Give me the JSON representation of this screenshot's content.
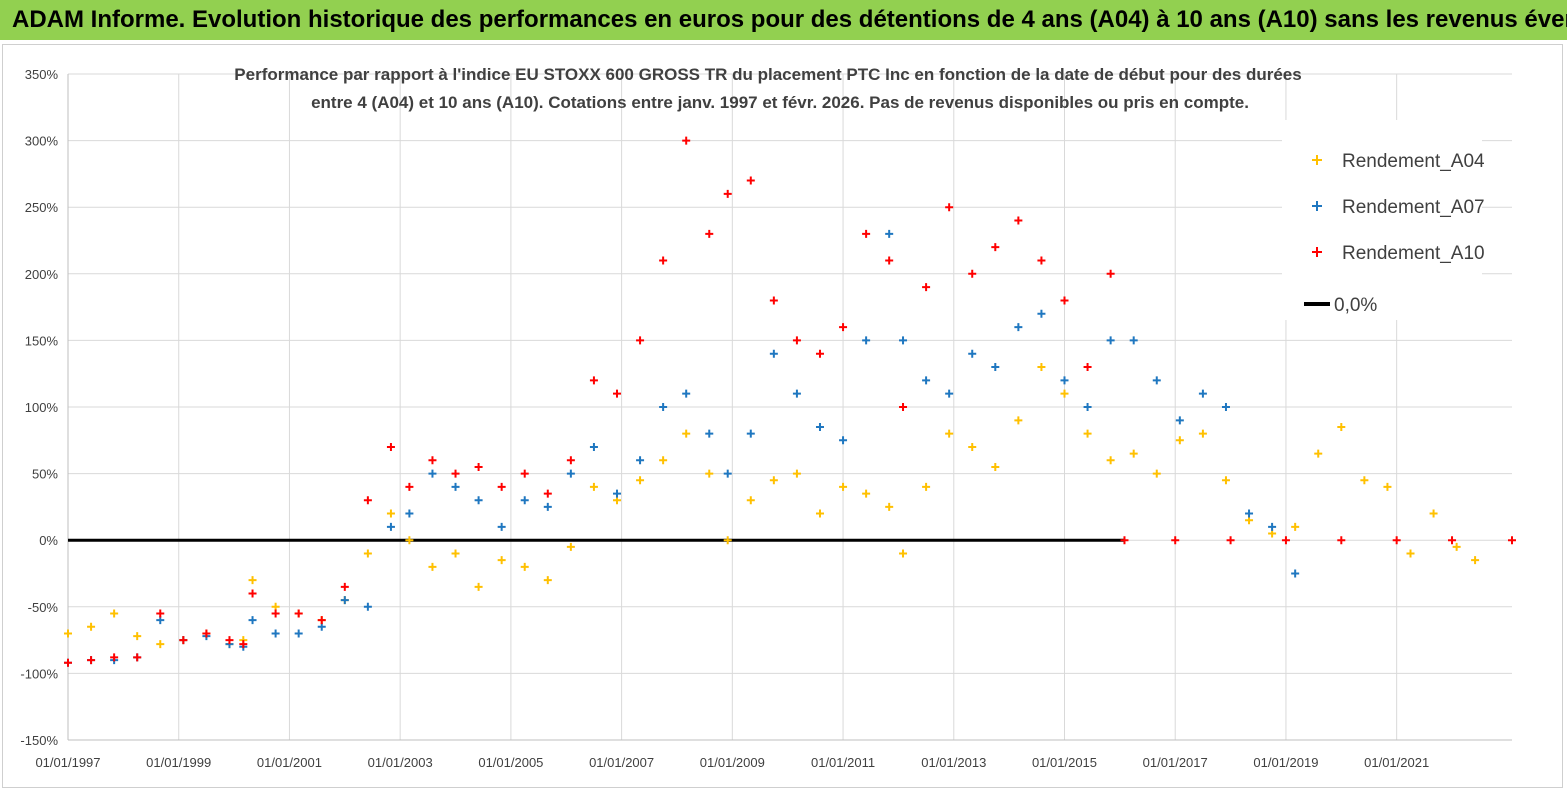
{
  "banner": {
    "title": "ADAM Informe. Evolution historique des performances en euros pour des détentions de 4 ans (A04) à 10 ans (A10) sans les revenus éventuels",
    "background": "#92d050"
  },
  "chart_data": {
    "type": "scatter",
    "subtitle_line1": "Performance par rapport à l'indice EU STOXX 600 GROSS TR  du placement PTC Inc en fonction de la date de début pour des durées",
    "subtitle_line2": "entre 4 (A04) et 10 ans (A10). Cotations entre janv. 1997 et févr. 2026. Pas de revenus disponibles ou pris en compte.",
    "xlabel": "",
    "ylabel": "",
    "x_range": [
      "1997-01-01",
      "2023-02-01"
    ],
    "ylim": [
      -150,
      350
    ],
    "y_ticks": [
      350,
      300,
      250,
      200,
      150,
      100,
      50,
      0,
      -50,
      -100,
      -150
    ],
    "y_tick_labels": [
      "350%",
      "300%",
      "250%",
      "200%",
      "150%",
      "100%",
      "50%",
      "0%",
      "-50%",
      "-100%",
      "-150%"
    ],
    "x_tick_labels": [
      "01/01/1997",
      "01/01/1999",
      "01/01/2001",
      "01/01/2003",
      "01/01/2005",
      "01/01/2007",
      "01/01/2009",
      "01/01/2011",
      "01/01/2013",
      "01/01/2015",
      "01/01/2017",
      "01/01/2019",
      "01/01/2021"
    ],
    "x_tick_years": [
      1997,
      1999,
      2001,
      2003,
      2005,
      2007,
      2009,
      2011,
      2013,
      2015,
      2017,
      2019,
      2021
    ],
    "grid": true,
    "legend_position": "top-right",
    "series": [
      {
        "name": "Rendement_A04",
        "color": "#ffc000",
        "marker": "+",
        "points": [
          [
            "1997-01-01",
            -70
          ],
          [
            "1997-06-01",
            -65
          ],
          [
            "1997-11-01",
            -55
          ],
          [
            "1998-04-01",
            -72
          ],
          [
            "1998-09-01",
            -78
          ],
          [
            "1999-02-01",
            -75
          ],
          [
            "1999-07-01",
            -70
          ],
          [
            "1999-12-01",
            -78
          ],
          [
            "2000-03-01",
            -75
          ],
          [
            "2000-05-01",
            -30
          ],
          [
            "2000-10-01",
            -50
          ],
          [
            "2001-03-01",
            -55
          ],
          [
            "2001-08-01",
            -60
          ],
          [
            "2002-01-01",
            -45
          ],
          [
            "2002-06-01",
            -10
          ],
          [
            "2002-11-01",
            20
          ],
          [
            "2003-03-01",
            0
          ],
          [
            "2003-08-01",
            -20
          ],
          [
            "2004-01-01",
            -10
          ],
          [
            "2004-06-01",
            -35
          ],
          [
            "2004-11-01",
            -15
          ],
          [
            "2005-04-01",
            -20
          ],
          [
            "2005-09-01",
            -30
          ],
          [
            "2006-02-01",
            -5
          ],
          [
            "2006-07-01",
            40
          ],
          [
            "2006-12-01",
            30
          ],
          [
            "2007-05-01",
            45
          ],
          [
            "2007-10-01",
            60
          ],
          [
            "2008-03-01",
            80
          ],
          [
            "2008-08-01",
            50
          ],
          [
            "2008-12-01",
            0
          ],
          [
            "2009-05-01",
            30
          ],
          [
            "2009-10-01",
            45
          ],
          [
            "2010-03-01",
            50
          ],
          [
            "2010-08-01",
            20
          ],
          [
            "2011-01-01",
            40
          ],
          [
            "2011-06-01",
            35
          ],
          [
            "2011-11-01",
            25
          ],
          [
            "2012-02-01",
            -10
          ],
          [
            "2012-07-01",
            40
          ],
          [
            "2012-12-01",
            80
          ],
          [
            "2013-05-01",
            70
          ],
          [
            "2013-10-01",
            55
          ],
          [
            "2014-03-01",
            90
          ],
          [
            "2014-08-01",
            130
          ],
          [
            "2015-01-01",
            110
          ],
          [
            "2015-06-01",
            80
          ],
          [
            "2015-11-01",
            60
          ],
          [
            "2016-04-01",
            65
          ],
          [
            "2016-09-01",
            50
          ],
          [
            "2017-02-01",
            75
          ],
          [
            "2017-07-01",
            80
          ],
          [
            "2017-12-01",
            45
          ],
          [
            "2018-05-01",
            15
          ],
          [
            "2018-10-01",
            5
          ],
          [
            "2019-03-01",
            10
          ],
          [
            "2019-08-01",
            65
          ],
          [
            "2020-01-01",
            85
          ],
          [
            "2020-06-01",
            45
          ],
          [
            "2020-11-01",
            40
          ],
          [
            "2021-04-01",
            -10
          ],
          [
            "2021-09-01",
            20
          ],
          [
            "2022-02-01",
            -5
          ],
          [
            "2022-06-01",
            -15
          ]
        ]
      },
      {
        "name": "Rendement_A07",
        "color": "#1f77c0",
        "marker": "+",
        "points": [
          [
            "1997-01-01",
            -92
          ],
          [
            "1997-06-01",
            -90
          ],
          [
            "1997-11-01",
            -90
          ],
          [
            "1998-04-01",
            -88
          ],
          [
            "1998-09-01",
            -60
          ],
          [
            "1999-02-01",
            -75
          ],
          [
            "1999-07-01",
            -72
          ],
          [
            "1999-12-01",
            -78
          ],
          [
            "2000-03-01",
            -80
          ],
          [
            "2000-05-01",
            -60
          ],
          [
            "2000-10-01",
            -70
          ],
          [
            "2001-03-01",
            -70
          ],
          [
            "2001-08-01",
            -65
          ],
          [
            "2002-01-01",
            -45
          ],
          [
            "2002-06-01",
            -50
          ],
          [
            "2002-11-01",
            10
          ],
          [
            "2003-03-01",
            20
          ],
          [
            "2003-08-01",
            50
          ],
          [
            "2004-01-01",
            40
          ],
          [
            "2004-06-01",
            30
          ],
          [
            "2004-11-01",
            10
          ],
          [
            "2005-04-01",
            30
          ],
          [
            "2005-09-01",
            25
          ],
          [
            "2006-02-01",
            50
          ],
          [
            "2006-07-01",
            70
          ],
          [
            "2006-12-01",
            35
          ],
          [
            "2007-05-01",
            60
          ],
          [
            "2007-10-01",
            100
          ],
          [
            "2008-03-01",
            110
          ],
          [
            "2008-08-01",
            80
          ],
          [
            "2008-12-01",
            50
          ],
          [
            "2009-05-01",
            80
          ],
          [
            "2009-10-01",
            140
          ],
          [
            "2010-03-01",
            110
          ],
          [
            "2010-08-01",
            85
          ],
          [
            "2011-01-01",
            75
          ],
          [
            "2011-06-01",
            150
          ],
          [
            "2011-11-01",
            230
          ],
          [
            "2012-02-01",
            150
          ],
          [
            "2012-07-01",
            120
          ],
          [
            "2012-12-01",
            110
          ],
          [
            "2013-05-01",
            140
          ],
          [
            "2013-10-01",
            130
          ],
          [
            "2014-03-01",
            160
          ],
          [
            "2014-08-01",
            170
          ],
          [
            "2015-01-01",
            120
          ],
          [
            "2015-06-01",
            100
          ],
          [
            "2015-11-01",
            150
          ],
          [
            "2016-04-01",
            150
          ],
          [
            "2016-09-01",
            120
          ],
          [
            "2017-02-01",
            90
          ],
          [
            "2017-07-01",
            110
          ],
          [
            "2017-12-01",
            100
          ],
          [
            "2018-05-01",
            20
          ],
          [
            "2018-10-01",
            10
          ],
          [
            "2019-03-01",
            -25
          ]
        ]
      },
      {
        "name": "Rendement_A10",
        "color": "#ff0000",
        "marker": "+",
        "points": [
          [
            "1997-01-01",
            -92
          ],
          [
            "1997-06-01",
            -90
          ],
          [
            "1997-11-01",
            -88
          ],
          [
            "1998-04-01",
            -88
          ],
          [
            "1998-09-01",
            -55
          ],
          [
            "1999-02-01",
            -75
          ],
          [
            "1999-07-01",
            -70
          ],
          [
            "1999-12-01",
            -75
          ],
          [
            "2000-03-01",
            -78
          ],
          [
            "2000-05-01",
            -40
          ],
          [
            "2000-10-01",
            -55
          ],
          [
            "2001-03-01",
            -55
          ],
          [
            "2001-08-01",
            -60
          ],
          [
            "2002-01-01",
            -35
          ],
          [
            "2002-06-01",
            30
          ],
          [
            "2002-11-01",
            70
          ],
          [
            "2003-03-01",
            40
          ],
          [
            "2003-08-01",
            60
          ],
          [
            "2004-01-01",
            50
          ],
          [
            "2004-06-01",
            55
          ],
          [
            "2004-11-01",
            40
          ],
          [
            "2005-04-01",
            50
          ],
          [
            "2005-09-01",
            35
          ],
          [
            "2006-02-01",
            60
          ],
          [
            "2006-07-01",
            120
          ],
          [
            "2006-12-01",
            110
          ],
          [
            "2007-05-01",
            150
          ],
          [
            "2007-10-01",
            210
          ],
          [
            "2008-03-01",
            300
          ],
          [
            "2008-08-01",
            230
          ],
          [
            "2008-12-01",
            260
          ],
          [
            "2009-05-01",
            270
          ],
          [
            "2009-10-01",
            180
          ],
          [
            "2010-03-01",
            150
          ],
          [
            "2010-08-01",
            140
          ],
          [
            "2011-01-01",
            160
          ],
          [
            "2011-06-01",
            230
          ],
          [
            "2011-11-01",
            210
          ],
          [
            "2012-02-01",
            100
          ],
          [
            "2012-07-01",
            190
          ],
          [
            "2012-12-01",
            250
          ],
          [
            "2013-05-01",
            200
          ],
          [
            "2013-10-01",
            220
          ],
          [
            "2014-03-01",
            240
          ],
          [
            "2014-08-01",
            210
          ],
          [
            "2015-01-01",
            180
          ],
          [
            "2015-06-01",
            130
          ],
          [
            "2015-11-01",
            200
          ],
          [
            "2016-02-01",
            0
          ],
          [
            "2017-01-01",
            0
          ],
          [
            "2018-01-01",
            0
          ],
          [
            "2019-01-01",
            0
          ],
          [
            "2020-01-01",
            0
          ],
          [
            "2021-01-01",
            0
          ],
          [
            "2022-01-01",
            0
          ],
          [
            "2023-02-01",
            0
          ]
        ]
      },
      {
        "name": "0,0%",
        "color": "#000000",
        "marker": "line",
        "points": [
          [
            "1997-01-01",
            0
          ],
          [
            "2016-02-01",
            0
          ]
        ]
      }
    ]
  }
}
